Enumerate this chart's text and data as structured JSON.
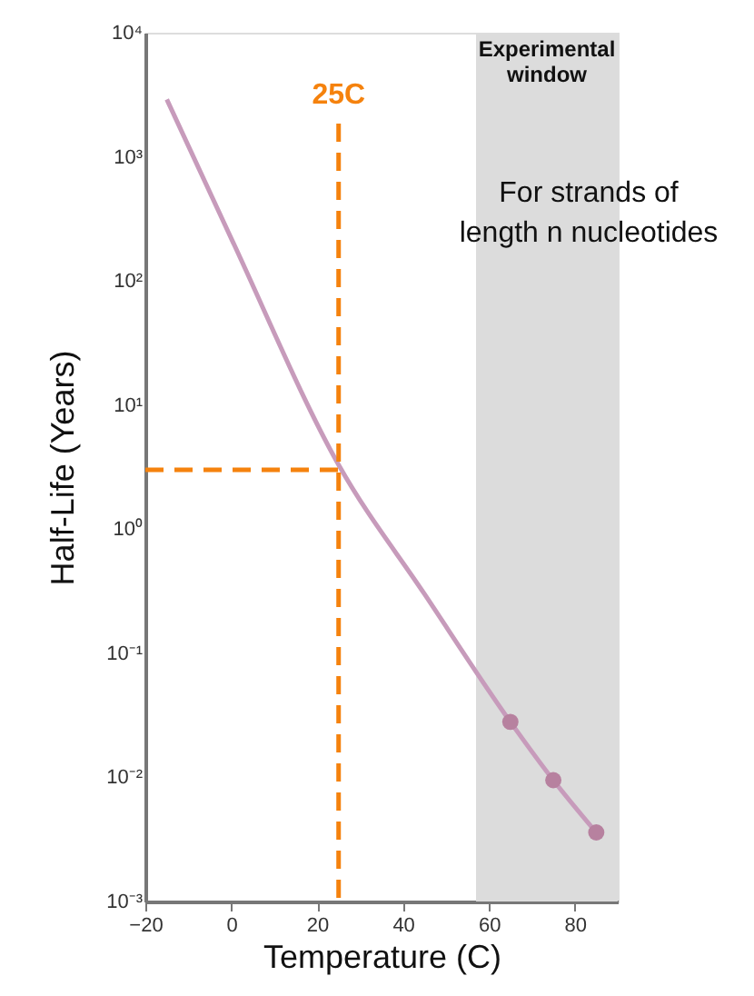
{
  "chart_data": {
    "type": "line",
    "xlabel": "Temperature (C)",
    "ylabel": "Half-Life (Years)",
    "log": "y",
    "grid": false,
    "marker": "none",
    "line_style": "solid",
    "xlim": [
      -20,
      90
    ],
    "xticks": [
      -20,
      0,
      20,
      40,
      60,
      80
    ],
    "ylim": [
      0.001,
      10000
    ],
    "yticks": [
      {
        "value": 0.001,
        "label": "10⁻³"
      },
      {
        "value": 0.01,
        "label": "10⁻²"
      },
      {
        "value": 0.1,
        "label": "10⁻¹"
      },
      {
        "value": 1,
        "label": "10⁰"
      },
      {
        "value": 10,
        "label": "10¹"
      },
      {
        "value": 100,
        "label": "10²"
      },
      {
        "value": 1000,
        "label": "10³"
      },
      {
        "value": 10000,
        "label": "10⁴"
      }
    ],
    "series": [
      {
        "color": "#c79bbb",
        "x": [
          -15,
          0,
          25,
          45,
          65,
          75,
          85
        ],
        "values": [
          2900,
          220,
          3.3,
          0.3,
          0.028,
          0.0095,
          0.0036
        ]
      },
      {
        "type": "scatter",
        "marker": "circle",
        "color": "#b7819f",
        "x": [
          65,
          75,
          85
        ],
        "values": [
          0.028,
          0.0095,
          0.0036
        ]
      }
    ],
    "ref_lines": [
      {
        "axis": "x",
        "value": 25,
        "label": "25C",
        "color": "#f5820d",
        "line_style": "dashed"
      },
      {
        "axis": "y",
        "value": 3,
        "label": null,
        "color": "#f5820d",
        "line_style": "dashed"
      }
    ],
    "bands": [
      {
        "axis": "x",
        "from": 57,
        "to": 90,
        "label": "Experimental window",
        "color": "#dcdcdc"
      }
    ],
    "annotations": [
      "For strands of\nlength n nucleotides"
    ]
  }
}
